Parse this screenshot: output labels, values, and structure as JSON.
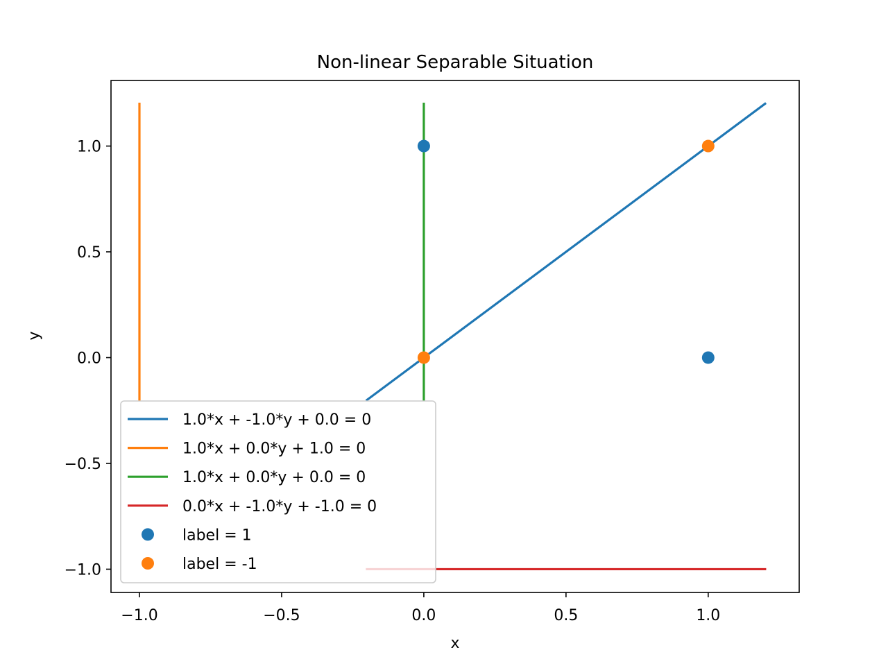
{
  "chart_data": {
    "type": "scatter",
    "title": "Non-linear Separable Situation",
    "xlabel": "x",
    "ylabel": "y",
    "xlim": [
      -1.1,
      1.32
    ],
    "ylim": [
      -1.11,
      1.31
    ],
    "xticks": [
      -1.0,
      -0.5,
      0.0,
      0.5,
      1.0
    ],
    "xtick_labels": [
      "−1.0",
      "−0.5",
      "0.0",
      "0.5",
      "1.0"
    ],
    "yticks": [
      -1.0,
      -0.5,
      0.0,
      0.5,
      1.0
    ],
    "ytick_labels": [
      "−1.0",
      "−0.5",
      "0.0",
      "0.5",
      "1.0"
    ],
    "grid": false,
    "legend_position": "lower-left",
    "lines": [
      {
        "name": "1.0*x + -1.0*y + 0.0 = 0",
        "color": "#1f77b4",
        "x": [
          -0.2,
          1.2
        ],
        "y": [
          -0.2,
          1.2
        ]
      },
      {
        "name": "1.0*x + 0.0*y + 1.0 = 0",
        "color": "#ff7f0e",
        "x": [
          -1.0,
          -1.0
        ],
        "y": [
          -0.2,
          1.2
        ]
      },
      {
        "name": "1.0*x + 0.0*y + 0.0 = 0",
        "color": "#2ca02c",
        "x": [
          0.0,
          0.0
        ],
        "y": [
          -0.2,
          1.2
        ]
      },
      {
        "name": "0.0*x + -1.0*y + -1.0 = 0",
        "color": "#d62728",
        "x": [
          -0.2,
          1.2
        ],
        "y": [
          -1.0,
          -1.0
        ]
      }
    ],
    "scatter": [
      {
        "name": "label = 1",
        "color": "#1f77b4",
        "points": [
          [
            0,
            1
          ],
          [
            1,
            0
          ]
        ]
      },
      {
        "name": "label = -1",
        "color": "#ff7f0e",
        "points": [
          [
            0,
            0
          ],
          [
            1,
            1
          ]
        ]
      }
    ]
  }
}
